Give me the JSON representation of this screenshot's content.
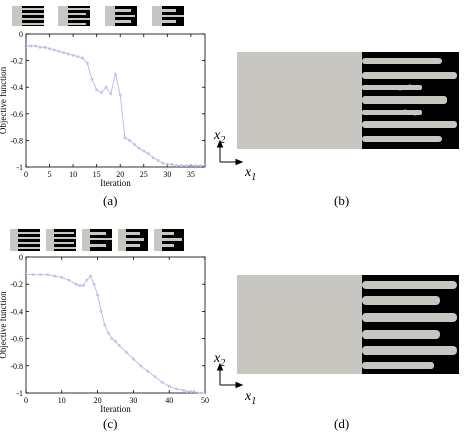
{
  "chart_data": [
    {
      "type": "line",
      "panel": "(a)",
      "xlabel": "Iteration",
      "ylabel": "Objective function",
      "xlim": [
        0,
        38
      ],
      "ylim": [
        -1,
        0
      ],
      "xticks": [
        0,
        5,
        10,
        15,
        20,
        25,
        30,
        35
      ],
      "yticks": [
        0,
        -0.2,
        -0.4,
        -0.6,
        -0.8,
        -1
      ],
      "tick_labels_y": [
        "0",
        "-0.2",
        "-0.4",
        "-0.6",
        "-0.8",
        "-1"
      ],
      "series_color": "#b7b7ee",
      "series": [
        {
          "x": [
            0,
            1,
            2,
            3,
            4,
            5,
            6,
            7,
            8,
            9,
            10,
            11,
            12,
            13,
            14,
            15,
            16,
            17,
            18,
            19,
            20,
            21,
            22,
            23,
            24,
            25,
            26,
            27,
            28,
            29,
            30,
            31,
            32,
            33,
            34,
            35,
            36,
            37,
            38
          ],
          "y": [
            -0.09,
            -0.09,
            -0.09,
            -0.1,
            -0.1,
            -0.11,
            -0.12,
            -0.13,
            -0.14,
            -0.15,
            -0.16,
            -0.17,
            -0.18,
            -0.22,
            -0.34,
            -0.42,
            -0.44,
            -0.4,
            -0.45,
            -0.3,
            -0.46,
            -0.78,
            -0.8,
            -0.83,
            -0.86,
            -0.88,
            -0.9,
            -0.93,
            -0.95,
            -0.97,
            -0.98,
            -0.98,
            -0.99,
            -0.99,
            -0.99,
            -0.99,
            -0.99,
            -0.99,
            -0.99
          ]
        }
      ],
      "grid": false
    },
    {
      "type": "line",
      "panel": "(c)",
      "xlabel": "Iteration",
      "ylabel": "Objective function",
      "xlim": [
        0,
        50
      ],
      "ylim": [
        -1,
        0
      ],
      "xticks": [
        0,
        10,
        20,
        30,
        40,
        50
      ],
      "yticks": [
        0,
        -0.2,
        -0.4,
        -0.6,
        -0.8,
        -1
      ],
      "tick_labels_y": [
        "0",
        "-0.2",
        "-0.4",
        "-0.6",
        "-0.8",
        "-1"
      ],
      "series_color": "#b7b7ee",
      "series": [
        {
          "x": [
            0,
            2,
            4,
            6,
            8,
            10,
            12,
            14,
            15,
            16,
            17,
            18,
            19,
            20,
            21,
            22,
            23,
            24,
            25,
            26,
            28,
            30,
            32,
            34,
            36,
            38,
            40,
            42,
            44,
            45,
            46,
            47,
            48,
            49,
            50
          ],
          "y": [
            -0.13,
            -0.13,
            -0.13,
            -0.13,
            -0.14,
            -0.15,
            -0.17,
            -0.2,
            -0.21,
            -0.21,
            -0.17,
            -0.14,
            -0.2,
            -0.28,
            -0.4,
            -0.5,
            -0.56,
            -0.6,
            -0.62,
            -0.65,
            -0.7,
            -0.75,
            -0.8,
            -0.84,
            -0.88,
            -0.92,
            -0.95,
            -0.97,
            -0.98,
            -0.99,
            -0.99,
            -0.99,
            -1.0,
            -1.0,
            -1.0
          ]
        }
      ],
      "grid": false
    }
  ],
  "panels": {
    "a": "(a)",
    "b": "(b)",
    "c": "(c)",
    "d": "(d)"
  },
  "axis_symbols": {
    "x_base": "x",
    "x_sub": "1",
    "y_base": "x",
    "y_sub": "2"
  },
  "colors": {
    "design_gray": "#c8c6c0",
    "solid": "#000000",
    "series": "#b7b7ee"
  }
}
